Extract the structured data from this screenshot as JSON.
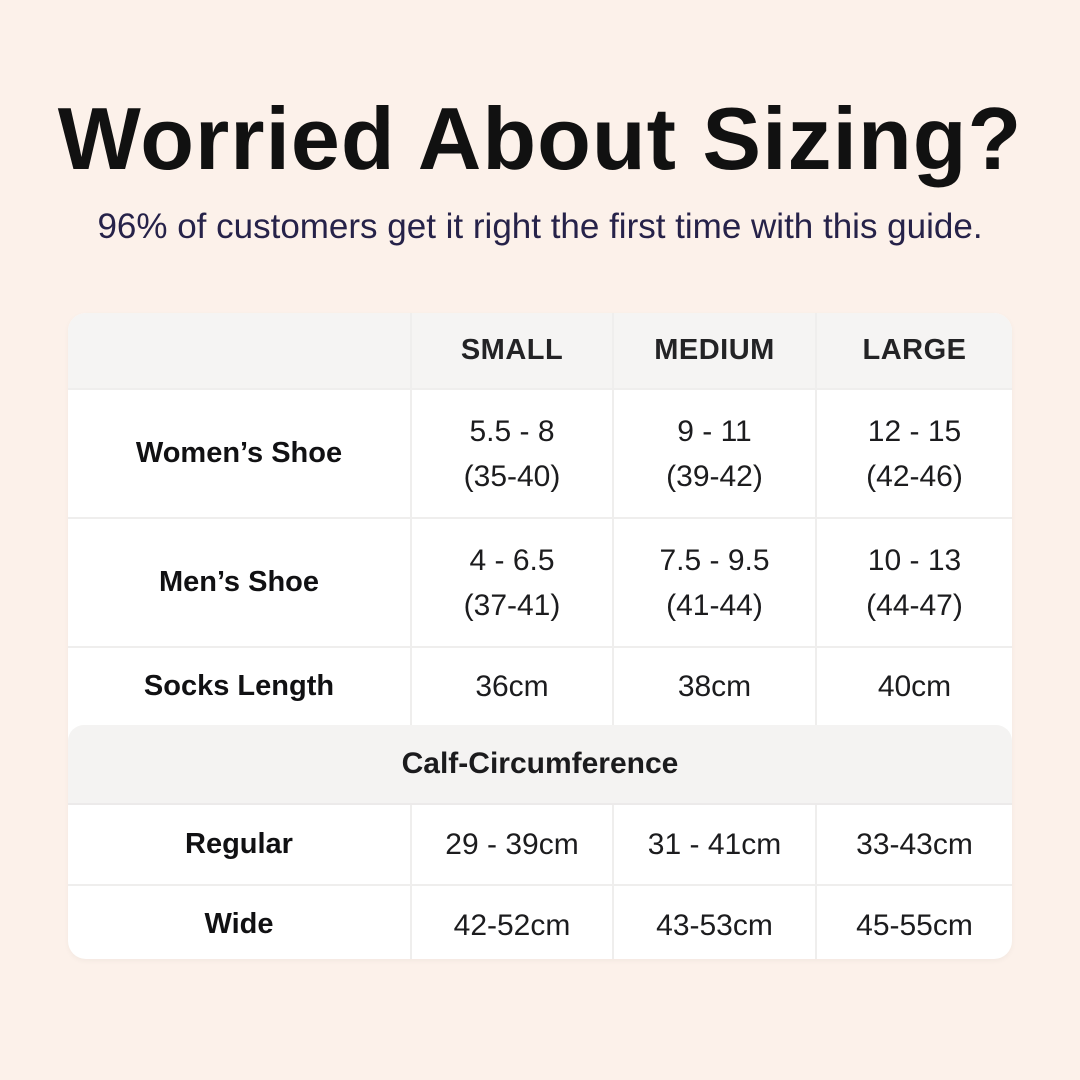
{
  "page": {
    "background_color": "#fcf1ea",
    "table_background": "#ffffff",
    "band_color": "#f5f4f3",
    "divider_color": "#efeeed",
    "title_color": "#111111",
    "subtitle_color": "#262249"
  },
  "header": {
    "title": "Worried About Sizing?",
    "subtitle": "96% of customers get it right the first time with this guide."
  },
  "table": {
    "columns": [
      "",
      "SMALL",
      "MEDIUM",
      "LARGE"
    ],
    "rows": [
      {
        "label": "Women’s Shoe",
        "small": "5.5 - 8\n(35-40)",
        "medium": "9 - 11\n(39-42)",
        "large": "12 - 15\n(42-46)"
      },
      {
        "label": "Men’s Shoe",
        "small": "4 - 6.5\n(37-41)",
        "medium": "7.5 - 9.5\n(41-44)",
        "large": "10 - 13\n(44-47)"
      },
      {
        "label": "Socks Length",
        "small": "36cm",
        "medium": "38cm",
        "large": "40cm"
      }
    ],
    "section_label": "Calf-Circumference",
    "calf_rows": [
      {
        "label": "Regular",
        "small": "29 - 39cm",
        "medium": "31 - 41cm",
        "large": "33-43cm"
      },
      {
        "label": "Wide",
        "small": "42-52cm",
        "medium": "43-53cm",
        "large": "45-55cm"
      }
    ]
  }
}
